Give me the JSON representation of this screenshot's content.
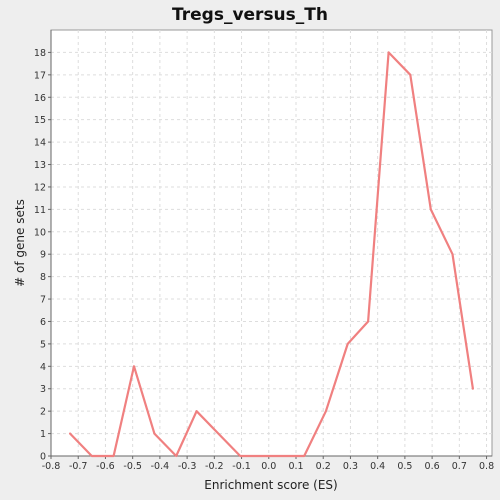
{
  "chart_data": {
    "type": "line",
    "title": "Tregs_versus_Th",
    "xlabel": "Enrichment score (ES)",
    "ylabel": "# of gene sets",
    "xlim": [
      -0.8,
      0.82
    ],
    "ylim": [
      0,
      19
    ],
    "x_ticks": [
      "-0.8",
      "-0.7",
      "-0.6",
      "-0.5",
      "-0.4",
      "-0.3",
      "-0.2",
      "-0.1",
      "0.0",
      "0.1",
      "0.2",
      "0.3",
      "0.4",
      "0.5",
      "0.6",
      "0.7",
      "0.8"
    ],
    "y_ticks": [
      "0",
      "1",
      "2",
      "3",
      "4",
      "5",
      "6",
      "7",
      "8",
      "9",
      "10",
      "11",
      "12",
      "13",
      "14",
      "15",
      "16",
      "17",
      "18"
    ],
    "grid": true,
    "series": [
      {
        "color": "#f08080",
        "x": [
          -0.73,
          -0.65,
          -0.57,
          -0.495,
          -0.42,
          -0.34,
          -0.265,
          -0.185,
          -0.105,
          -0.03,
          0.05,
          0.13,
          0.21,
          0.29,
          0.365,
          0.44,
          0.52,
          0.595,
          0.675,
          0.75
        ],
        "y": [
          1,
          0,
          0,
          4,
          1,
          0,
          2,
          1,
          0,
          0,
          0,
          0,
          2,
          5,
          6,
          18,
          17,
          11,
          9,
          3
        ]
      }
    ]
  }
}
